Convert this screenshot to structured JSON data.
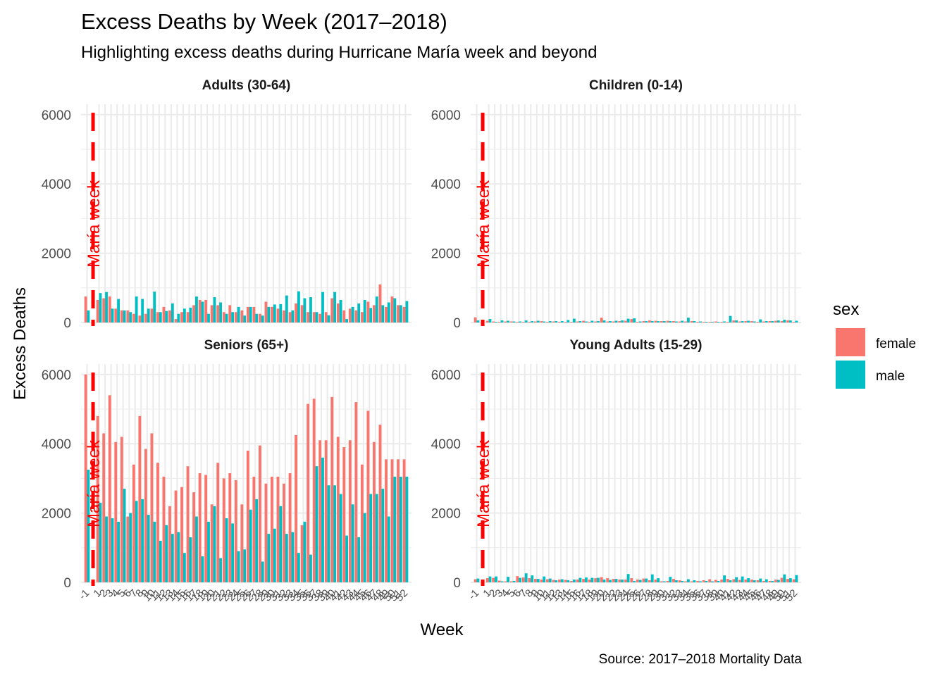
{
  "chart_data": {
    "type": "bar",
    "title": "Excess Deaths by Week (2017–2018)",
    "subtitle": "Highlighting excess deaths during Hurricane María week and beyond",
    "xlabel": "Week",
    "ylabel": "Excess Deaths",
    "caption": "Source: 2017–2018 Mortality Data",
    "ylim": [
      0,
      6300
    ],
    "y_ticks": [
      0,
      2000,
      4000,
      6000
    ],
    "grid": true,
    "legend": {
      "title": "sex",
      "position": "right",
      "entries": [
        "female",
        "male"
      ]
    },
    "colors": {
      "female": "#F8766D",
      "male": "#00BFC4",
      "reference_line": "#ff0000"
    },
    "reference_line": {
      "x": 0,
      "label": "María week"
    },
    "weeks": [
      -1,
      1,
      2,
      3,
      4,
      5,
      6,
      7,
      8,
      9,
      10,
      11,
      12,
      13,
      14,
      15,
      16,
      17,
      18,
      19,
      20,
      21,
      22,
      23,
      24,
      25,
      26,
      27,
      28,
      29,
      30,
      31,
      32,
      33,
      34,
      35,
      36,
      37,
      38,
      39,
      40,
      41,
      42,
      43,
      44,
      45,
      46,
      47,
      48,
      49,
      50,
      51,
      52
    ],
    "panels": [
      {
        "label": "Adults (30-64)",
        "series": [
          {
            "name": "female",
            "values": [
              750,
              650,
              700,
              750,
              400,
              350,
              350,
              250,
              200,
              250,
              400,
              300,
              450,
              350,
              100,
              300,
              300,
              500,
              650,
              650,
              500,
              500,
              300,
              500,
              300,
              350,
              450,
              450,
              250,
              600,
              450,
              400,
              350,
              300,
              550,
              500,
              300,
              300,
              250,
              300,
              700,
              550,
              350,
              400,
              350,
              300,
              600,
              500,
              1100,
              450,
              750,
              500,
              450
            ]
          },
          {
            "name": "male",
            "values": [
              350,
              850,
              880,
              400,
              680,
              350,
              300,
              750,
              680,
              400,
              890,
              300,
              330,
              550,
              250,
              400,
              430,
              750,
              600,
              250,
              730,
              580,
              250,
              300,
              450,
              200,
              450,
              250,
              200,
              450,
              520,
              530,
              780,
              350,
              900,
              700,
              730,
              300,
              880,
              210,
              880,
              650,
              100,
              450,
              550,
              650,
              420,
              750,
              500,
              580,
              700,
              500,
              620
            ]
          }
        ]
      },
      {
        "label": "Children (0-14)",
        "series": [
          {
            "name": "female",
            "values": [
              150,
              50,
              30,
              20,
              30,
              30,
              20,
              20,
              20,
              30,
              40,
              20,
              30,
              20,
              20,
              20,
              30,
              50,
              20,
              30,
              140,
              30,
              30,
              40,
              50,
              100,
              20,
              40,
              60,
              50,
              40,
              50,
              40,
              30,
              30,
              40,
              20,
              20,
              20,
              30,
              20,
              20,
              60,
              30,
              40,
              40,
              20,
              30,
              40,
              50,
              40,
              60,
              20
            ]
          },
          {
            "name": "male",
            "values": [
              60,
              100,
              20,
              60,
              50,
              30,
              30,
              60,
              40,
              50,
              30,
              40,
              40,
              40,
              70,
              110,
              40,
              30,
              50,
              40,
              60,
              40,
              50,
              60,
              110,
              120,
              30,
              40,
              40,
              40,
              40,
              40,
              30,
              50,
              140,
              40,
              30,
              20,
              20,
              20,
              30,
              190,
              60,
              40,
              50,
              30,
              90,
              40,
              40,
              60,
              80,
              60,
              50
            ]
          }
        ]
      },
      {
        "label": "Seniors (65+)",
        "series": [
          {
            "name": "female",
            "values": [
              6000,
              4800,
              4300,
              5400,
              4050,
              4200,
              1900,
              3400,
              4800,
              3850,
              4300,
              3450,
              3050,
              2200,
              2650,
              2750,
              3350,
              2600,
              3150,
              3100,
              2250,
              3450,
              3000,
              3150,
              2950,
              2250,
              3800,
              3050,
              3950,
              2850,
              3050,
              3050,
              2850,
              3150,
              4250,
              1650,
              5150,
              5300,
              4100,
              4100,
              5350,
              4200,
              3900,
              4100,
              5200,
              3400,
              4950,
              4050,
              4550,
              3550,
              3550,
              3550,
              3550
            ]
          },
          {
            "name": "male",
            "values": [
              3250,
              2300,
              1900,
              1850,
              1750,
              2700,
              2000,
              2350,
              2400,
              1950,
              1750,
              1200,
              1650,
              1400,
              1450,
              850,
              1300,
              1900,
              750,
              1750,
              2200,
              700,
              1850,
              1700,
              900,
              950,
              2100,
              2400,
              600,
              1400,
              1550,
              2200,
              1400,
              1450,
              850,
              1750,
              800,
              3350,
              3600,
              2800,
              2800,
              2550,
              1350,
              2250,
              1300,
              2000,
              2550,
              2550,
              2700,
              1900,
              3050,
              3050,
              3050
            ]
          }
        ]
      },
      {
        "label": "Young Adults (15-29)",
        "series": [
          {
            "name": "female",
            "values": [
              90,
              120,
              130,
              50,
              30,
              30,
              180,
              140,
              120,
              100,
              80,
              90,
              70,
              80,
              70,
              40,
              80,
              100,
              80,
              120,
              150,
              120,
              100,
              80,
              80,
              120,
              80,
              110,
              60,
              80,
              30,
              40,
              100,
              60,
              30,
              30,
              40,
              60,
              90,
              70,
              80,
              100,
              90,
              70,
              80,
              80,
              60,
              40,
              40,
              80,
              130,
              100,
              90
            ]
          },
          {
            "name": "male",
            "values": [
              110,
              170,
              170,
              30,
              160,
              40,
              130,
              260,
              200,
              100,
              170,
              110,
              60,
              90,
              60,
              80,
              130,
              140,
              130,
              130,
              80,
              70,
              100,
              80,
              240,
              40,
              70,
              110,
              230,
              120,
              30,
              160,
              60,
              40,
              90,
              60,
              30,
              40,
              30,
              40,
              200,
              60,
              150,
              170,
              120,
              60,
              110,
              90,
              40,
              70,
              230,
              120,
              210
            ]
          }
        ]
      }
    ]
  }
}
